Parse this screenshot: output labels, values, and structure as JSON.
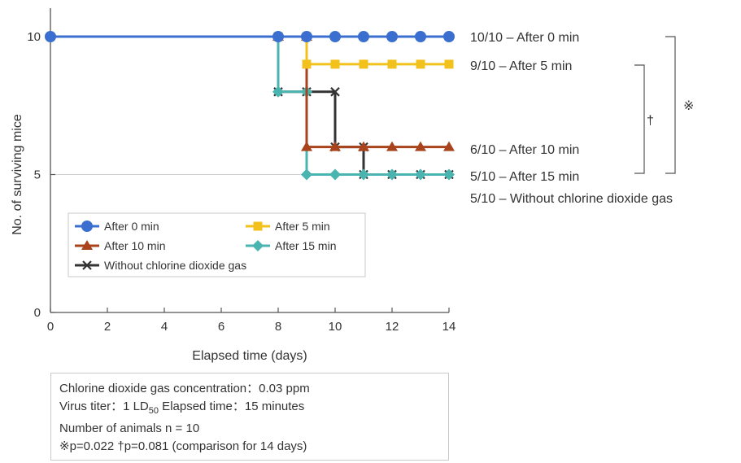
{
  "chart_data": {
    "type": "line",
    "xlabel": "Elapsed time (days)",
    "ylabel": "No. of surviving mice",
    "xlim": [
      0,
      14
    ],
    "ylim": [
      0,
      10
    ],
    "x_ticks": [
      "0",
      "2",
      "4",
      "6",
      "8",
      "10",
      "12",
      "14"
    ],
    "y_ticks": [
      "0",
      "5",
      "10"
    ],
    "legend_position": "bottom-left",
    "series": [
      {
        "name": "After 0 min",
        "color": "#3a6fd0",
        "marker": "circle",
        "points": [
          [
            0,
            10
          ],
          [
            8,
            10
          ],
          [
            9,
            10
          ],
          [
            10,
            10
          ],
          [
            11,
            10
          ],
          [
            12,
            10
          ],
          [
            13,
            10
          ],
          [
            14,
            10
          ]
        ],
        "end_label": "10/10 – After 0 min"
      },
      {
        "name": "After 5 min",
        "color": "#f2c11c",
        "marker": "square",
        "points": [
          [
            0,
            10
          ],
          [
            8,
            10
          ],
          [
            9,
            10
          ],
          [
            9,
            9
          ],
          [
            10,
            9
          ],
          [
            11,
            9
          ],
          [
            12,
            9
          ],
          [
            13,
            9
          ],
          [
            14,
            9
          ]
        ],
        "end_label": "9/10 – After 5 min"
      },
      {
        "name": "After 10 min",
        "color": "#a8431b",
        "marker": "triangle",
        "points": [
          [
            0,
            10
          ],
          [
            8,
            10
          ],
          [
            9,
            10
          ],
          [
            9,
            6
          ],
          [
            10,
            6
          ],
          [
            11,
            6
          ],
          [
            12,
            6
          ],
          [
            13,
            6
          ],
          [
            14,
            6
          ]
        ],
        "end_label": "6/10 – After 10 min"
      },
      {
        "name": "After 15 min",
        "color": "#4ab5b0",
        "marker": "diamond",
        "points": [
          [
            0,
            10
          ],
          [
            8,
            10
          ],
          [
            8,
            8
          ],
          [
            9,
            8
          ],
          [
            9,
            5
          ],
          [
            10,
            5
          ],
          [
            11,
            5
          ],
          [
            12,
            5
          ],
          [
            13,
            5
          ],
          [
            14,
            5
          ]
        ],
        "end_label": "5/10 – After 15 min"
      },
      {
        "name": "Without chlorine dioxide gas",
        "color": "#333333",
        "marker": "x",
        "points": [
          [
            0,
            10
          ],
          [
            8,
            10
          ],
          [
            8,
            8
          ],
          [
            9,
            8
          ],
          [
            10,
            8
          ],
          [
            10,
            6
          ],
          [
            11,
            6
          ],
          [
            11,
            5
          ],
          [
            12,
            5
          ],
          [
            13,
            5
          ],
          [
            14,
            5
          ]
        ],
        "end_label": "5/10 – Without chlorine dioxide gas"
      }
    ],
    "annotations": {
      "star_symbol": "※",
      "dagger_symbol": "†"
    }
  },
  "info_box": {
    "line1": "Chlorine dioxide gas concentration：0.03 ppm",
    "line2_pre": "Virus titer：1 LD",
    "line2_sub": "50",
    "line2_post": " Elapsed time：15 minutes",
    "line3": "Number of animals n = 10",
    "line4": "※p=0.022 †p=0.081 (comparison for 14 days)"
  }
}
